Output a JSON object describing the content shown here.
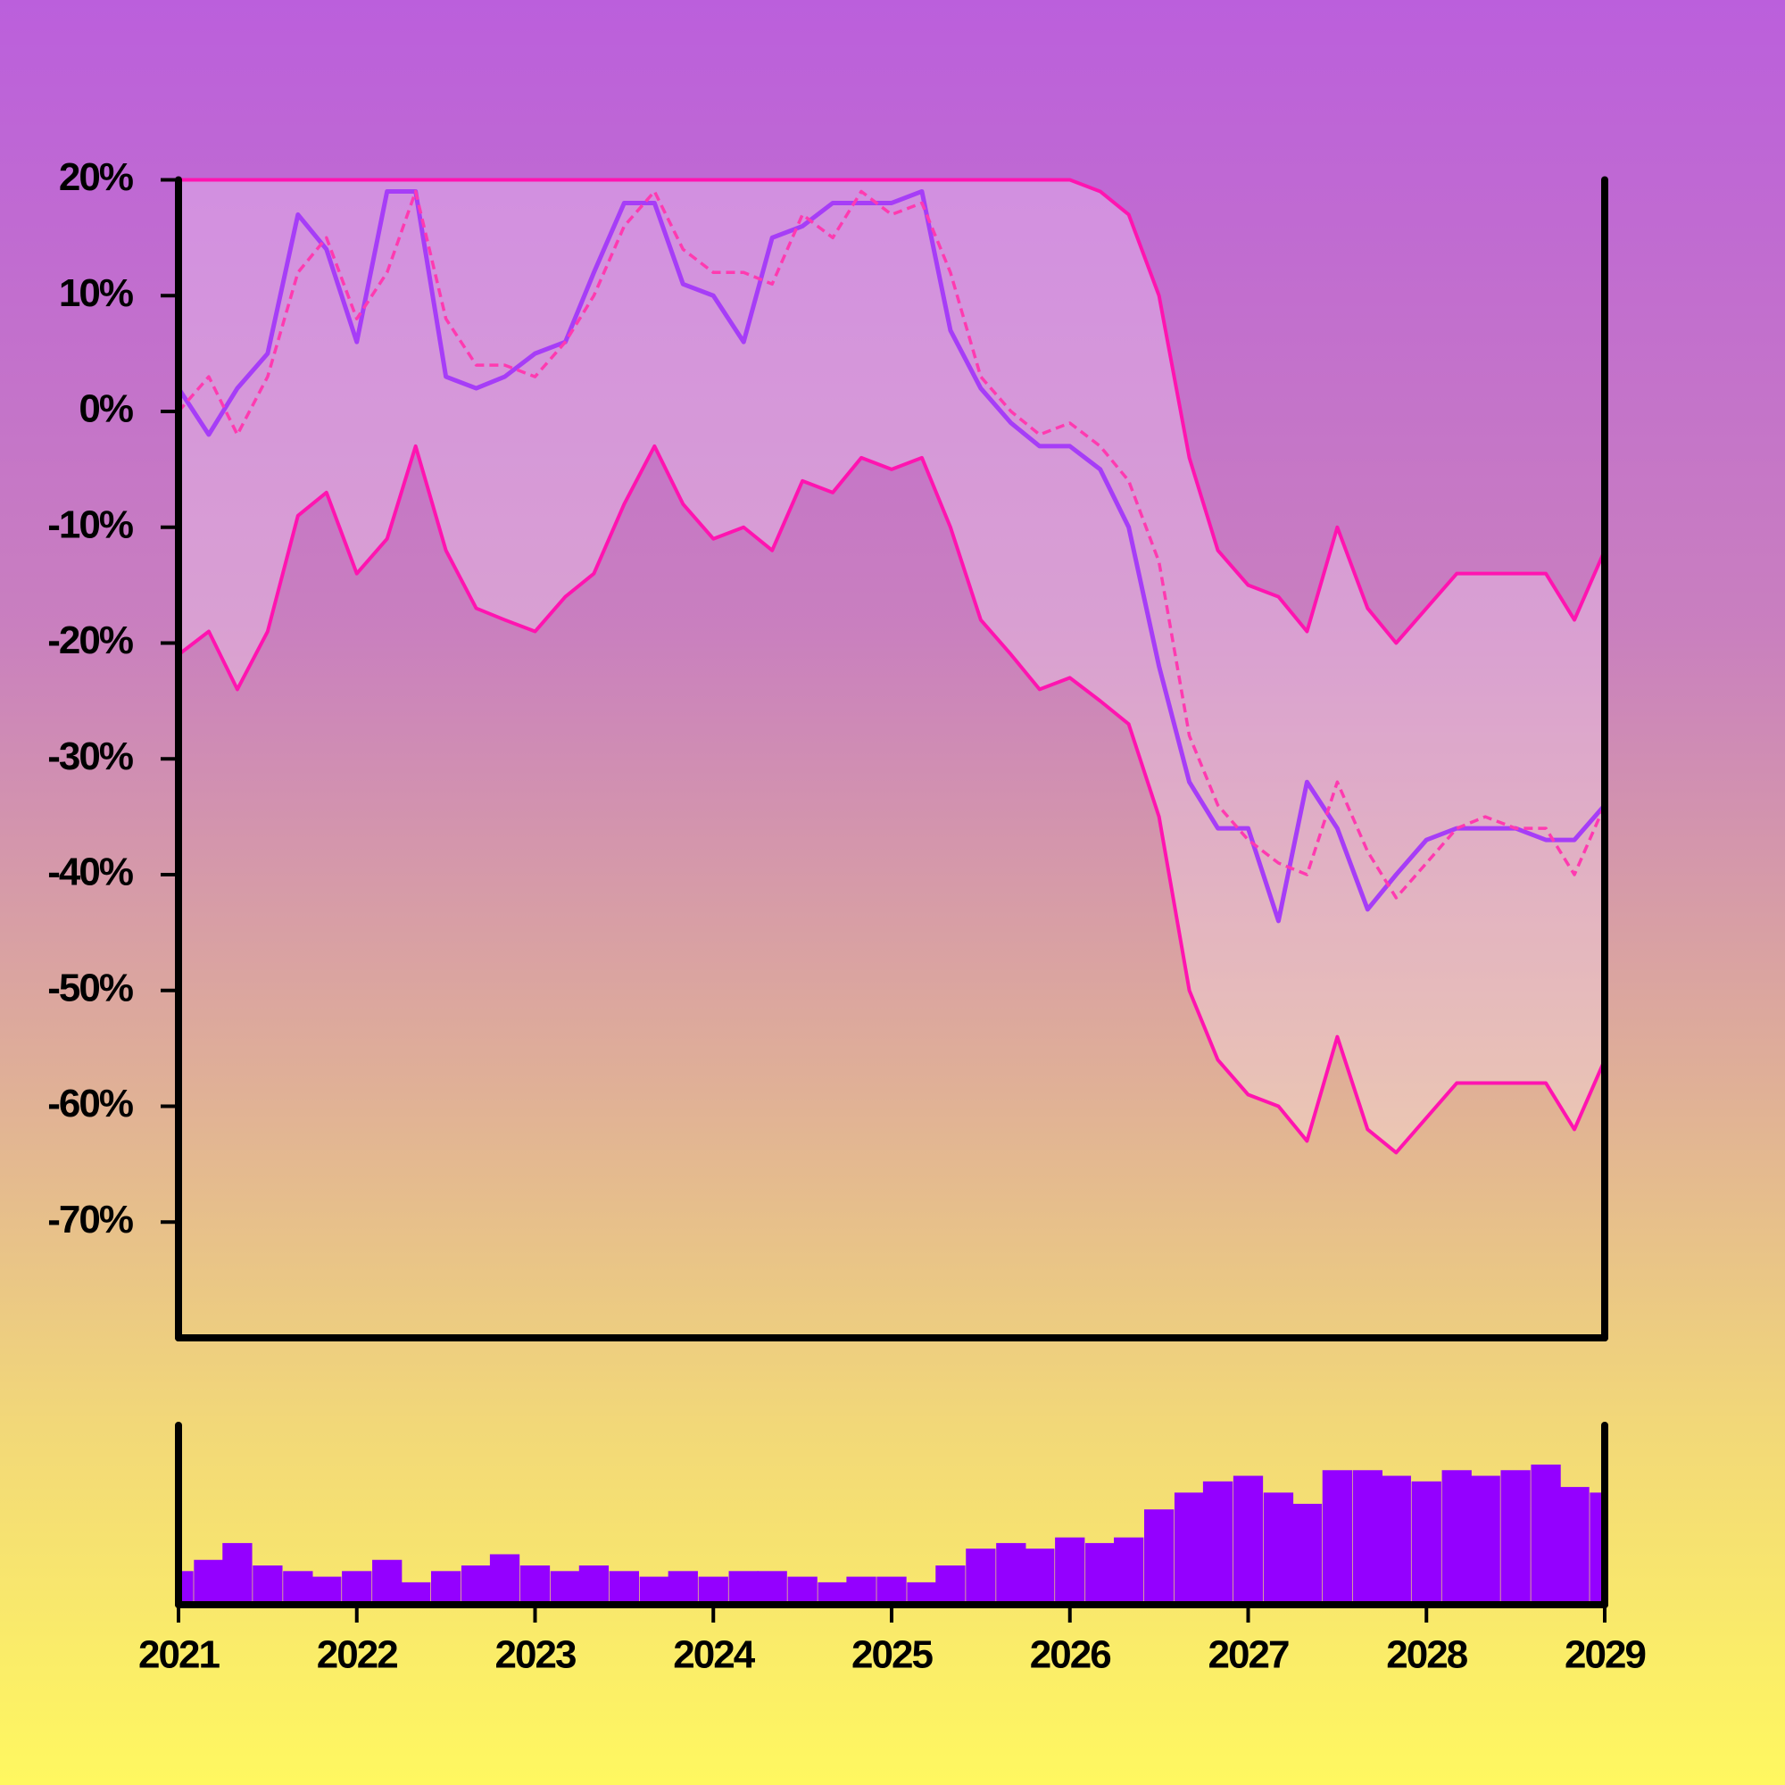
{
  "chart_data": [
    {
      "type": "line",
      "x": [
        2021,
        2021.17,
        2021.33,
        2021.5,
        2021.67,
        2021.83,
        2022,
        2022.17,
        2022.33,
        2022.5,
        2022.67,
        2022.83,
        2023,
        2023.17,
        2023.33,
        2023.5,
        2023.67,
        2023.83,
        2024,
        2024.17,
        2024.33,
        2024.5,
        2024.67,
        2024.83,
        2025,
        2025.17,
        2025.33,
        2025.5,
        2025.67,
        2025.83,
        2026,
        2026.17,
        2026.33,
        2026.5,
        2026.67,
        2026.83,
        2027,
        2027.17,
        2027.33,
        2027.5,
        2027.67,
        2027.83,
        2028,
        2028.17,
        2028.33,
        2028.5,
        2028.67,
        2028.83,
        2029
      ],
      "xlim": [
        2021,
        2029
      ],
      "ylim": [
        -80,
        20
      ],
      "yticks": [
        {
          "value": 20,
          "label": "20%"
        },
        {
          "value": 10,
          "label": "10%"
        },
        {
          "value": 0,
          "label": "0%"
        },
        {
          "value": -10,
          "label": "-10%"
        },
        {
          "value": -20,
          "label": "-20%"
        },
        {
          "value": -30,
          "label": "-30%"
        },
        {
          "value": -40,
          "label": "-40%"
        },
        {
          "value": -50,
          "label": "-50%"
        },
        {
          "value": -60,
          "label": "-60%"
        },
        {
          "value": -70,
          "label": "-70%"
        }
      ],
      "band_fill": "rgba(255,235,255,0.3)",
      "fill_between": [
        2,
        3
      ],
      "series": [
        {
          "color": "#a63df7",
          "width": 5,
          "values": [
            2,
            -2,
            2,
            5,
            17,
            14,
            6,
            19,
            19,
            3,
            2,
            3,
            5,
            6,
            12,
            18,
            18,
            11,
            10,
            6,
            15,
            16,
            18,
            18,
            18,
            19,
            7,
            2,
            -1,
            -3,
            -3,
            -5,
            -10,
            -22,
            -32,
            -36,
            -36,
            -44,
            -32,
            -36,
            -43,
            -40,
            -37,
            -36,
            -36,
            -36,
            -37,
            -37,
            -34
          ]
        },
        {
          "color": "#ff3ab0",
          "width": 3.5,
          "dashed": true,
          "values": [
            0,
            3,
            -2,
            3,
            12,
            15,
            8,
            12,
            19,
            8,
            4,
            4,
            3,
            6,
            10,
            16,
            19,
            14,
            12,
            12,
            11,
            17,
            15,
            19,
            17,
            18,
            12,
            3,
            0,
            -2,
            -1,
            -3,
            -6,
            -13,
            -28,
            -34,
            -37,
            -39,
            -40,
            -32,
            -38,
            -42,
            -39,
            -36,
            -35,
            -36,
            -36,
            -40,
            -34
          ]
        },
        {
          "color": "#ff14b0",
          "width": 4,
          "values": [
            20,
            20,
            20,
            20,
            20,
            20,
            20,
            20,
            20,
            20,
            20,
            20,
            20,
            20,
            20,
            20,
            20,
            20,
            20,
            20,
            20,
            20,
            20,
            20,
            20,
            20,
            20,
            20,
            20,
            20,
            20,
            19,
            17,
            10,
            -4,
            -12,
            -15,
            -16,
            -19,
            -10,
            -17,
            -20,
            -17,
            -14,
            -14,
            -14,
            -14,
            -18,
            -12
          ]
        },
        {
          "color": "#ff14b0",
          "width": 4,
          "values": [
            -21,
            -19,
            -24,
            -19,
            -9,
            -7,
            -14,
            -11,
            -3,
            -12,
            -17,
            -18,
            -19,
            -16,
            -14,
            -8,
            -3,
            -8,
            -11,
            -10,
            -12,
            -6,
            -7,
            -4,
            -5,
            -4,
            -10,
            -18,
            -21,
            -24,
            -23,
            -25,
            -27,
            -35,
            -50,
            -56,
            -59,
            -60,
            -63,
            -54,
            -62,
            -64,
            -61,
            -58,
            -58,
            -58,
            -58,
            -62,
            -56
          ]
        }
      ]
    },
    {
      "type": "bar",
      "color": "#9400ff",
      "x": [
        2021,
        2021.17,
        2021.33,
        2021.5,
        2021.67,
        2021.83,
        2022,
        2022.17,
        2022.33,
        2022.5,
        2022.67,
        2022.83,
        2023,
        2023.17,
        2023.33,
        2023.5,
        2023.67,
        2023.83,
        2024,
        2024.17,
        2024.33,
        2024.5,
        2024.67,
        2024.83,
        2025,
        2025.17,
        2025.33,
        2025.5,
        2025.67,
        2025.83,
        2026,
        2026.17,
        2026.33,
        2026.5,
        2026.67,
        2026.83,
        2027,
        2027.17,
        2027.33,
        2027.5,
        2027.67,
        2027.83,
        2028,
        2028.17,
        2028.33,
        2028.5,
        2028.67,
        2028.83,
        2029
      ],
      "values": [
        30,
        40,
        55,
        35,
        30,
        25,
        30,
        40,
        20,
        30,
        35,
        45,
        35,
        30,
        35,
        30,
        25,
        30,
        25,
        30,
        30,
        25,
        20,
        25,
        25,
        20,
        35,
        50,
        55,
        50,
        60,
        55,
        60,
        85,
        100,
        110,
        115,
        100,
        90,
        120,
        120,
        115,
        110,
        120,
        115,
        120,
        125,
        105,
        100
      ],
      "xlim": [
        2021,
        2029
      ],
      "xticks": [
        2021,
        2022,
        2023,
        2024,
        2025,
        2026,
        2027,
        2028,
        2029
      ],
      "ylim": [
        0,
        160
      ]
    }
  ]
}
